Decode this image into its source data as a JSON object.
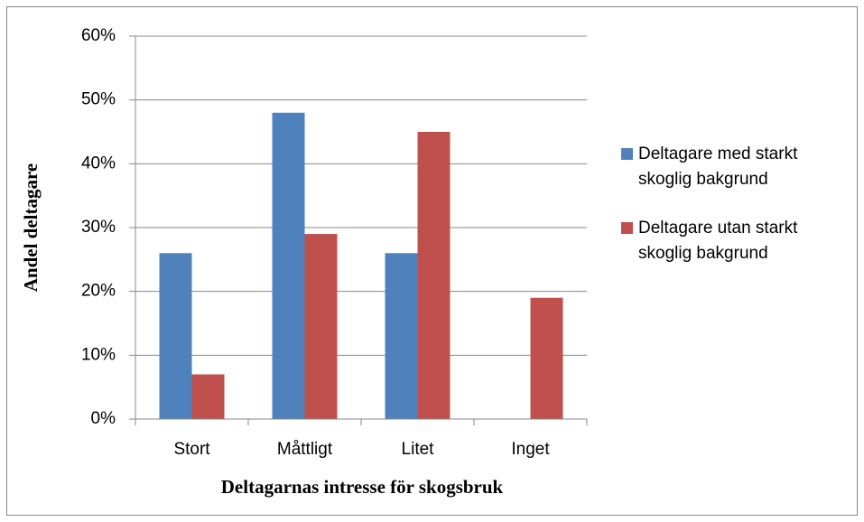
{
  "chart_data": {
    "type": "bar",
    "x_label": "Deltagarnas intresse för skogsbruk",
    "y_label": "Andel deltagare",
    "categories": [
      "Stort",
      "Måttligt",
      "Litet",
      "Inget"
    ],
    "series": [
      {
        "name": "Deltagare med starkt skoglig bakgrund",
        "color": "#4f81bd",
        "values": [
          26,
          48,
          26,
          0
        ]
      },
      {
        "name": "Deltagare utan starkt skoglig bakgrund",
        "color": "#c0504d",
        "values": [
          7,
          29,
          45,
          19
        ]
      }
    ],
    "ylim": [
      0,
      60
    ],
    "yticks": [
      {
        "value": 0,
        "label": "0%"
      },
      {
        "value": 10,
        "label": "10%"
      },
      {
        "value": 20,
        "label": "20%"
      },
      {
        "value": 30,
        "label": "30%"
      },
      {
        "value": 40,
        "label": "40%"
      },
      {
        "value": 50,
        "label": "50%"
      },
      {
        "value": 60,
        "label": "60%"
      }
    ],
    "grid": true,
    "legend": "right"
  }
}
